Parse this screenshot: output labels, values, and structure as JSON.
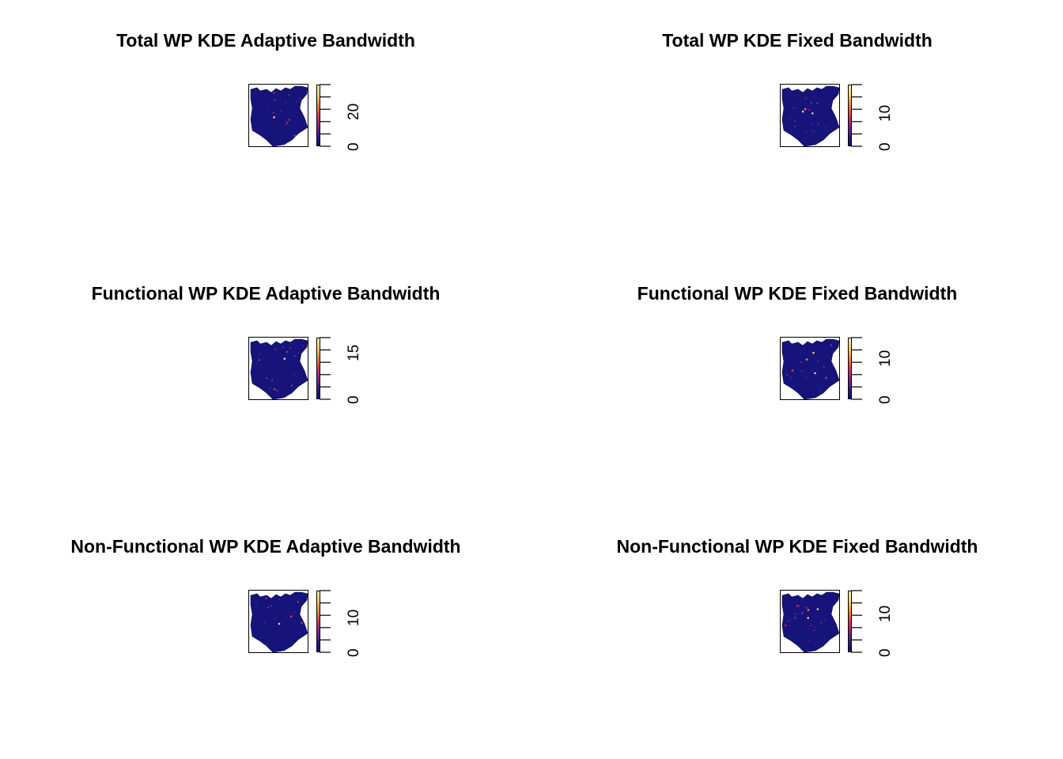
{
  "colors": {
    "low": "#16147a",
    "mid": "#a0206a",
    "high": "#fde39a",
    "scale": [
      "#0c0c6e",
      "#3a1a8a",
      "#8a2487",
      "#d83a5a",
      "#f4883a",
      "#fbd36a",
      "#fff0b0"
    ]
  },
  "chart_data": [
    {
      "type": "heatmap",
      "title": "Total WP KDE Adaptive Bandwidth",
      "colorbar": {
        "ticks": [
          0,
          20
        ],
        "labels": [
          "0",
          "20"
        ],
        "range": [
          0,
          36
        ]
      }
    },
    {
      "type": "heatmap",
      "title": "Total WP KDE Fixed Bandwidth",
      "colorbar": {
        "ticks": [
          0,
          10
        ],
        "labels": [
          "0",
          "10"
        ],
        "range": [
          0,
          19
        ]
      }
    },
    {
      "type": "heatmap",
      "title": "Functional WP KDE Adaptive Bandwidth",
      "colorbar": {
        "ticks": [
          0,
          15
        ],
        "labels": [
          "0",
          "15"
        ],
        "range": [
          0,
          20
        ]
      }
    },
    {
      "type": "heatmap",
      "title": "Functional WP KDE Fixed Bandwidth",
      "colorbar": {
        "ticks": [
          0,
          10
        ],
        "labels": [
          "0",
          "10"
        ],
        "range": [
          0,
          15
        ]
      }
    },
    {
      "type": "heatmap",
      "title": "Non-Functional WP KDE Adaptive Bandwidth",
      "colorbar": {
        "ticks": [
          0,
          10
        ],
        "labels": [
          "0",
          "10"
        ],
        "range": [
          0,
          18
        ]
      }
    },
    {
      "type": "heatmap",
      "title": "Non-Functional WP KDE Fixed Bandwidth",
      "colorbar": {
        "ticks": [
          0,
          10
        ],
        "labels": [
          "0",
          "10"
        ],
        "range": [
          0,
          16
        ]
      }
    }
  ]
}
